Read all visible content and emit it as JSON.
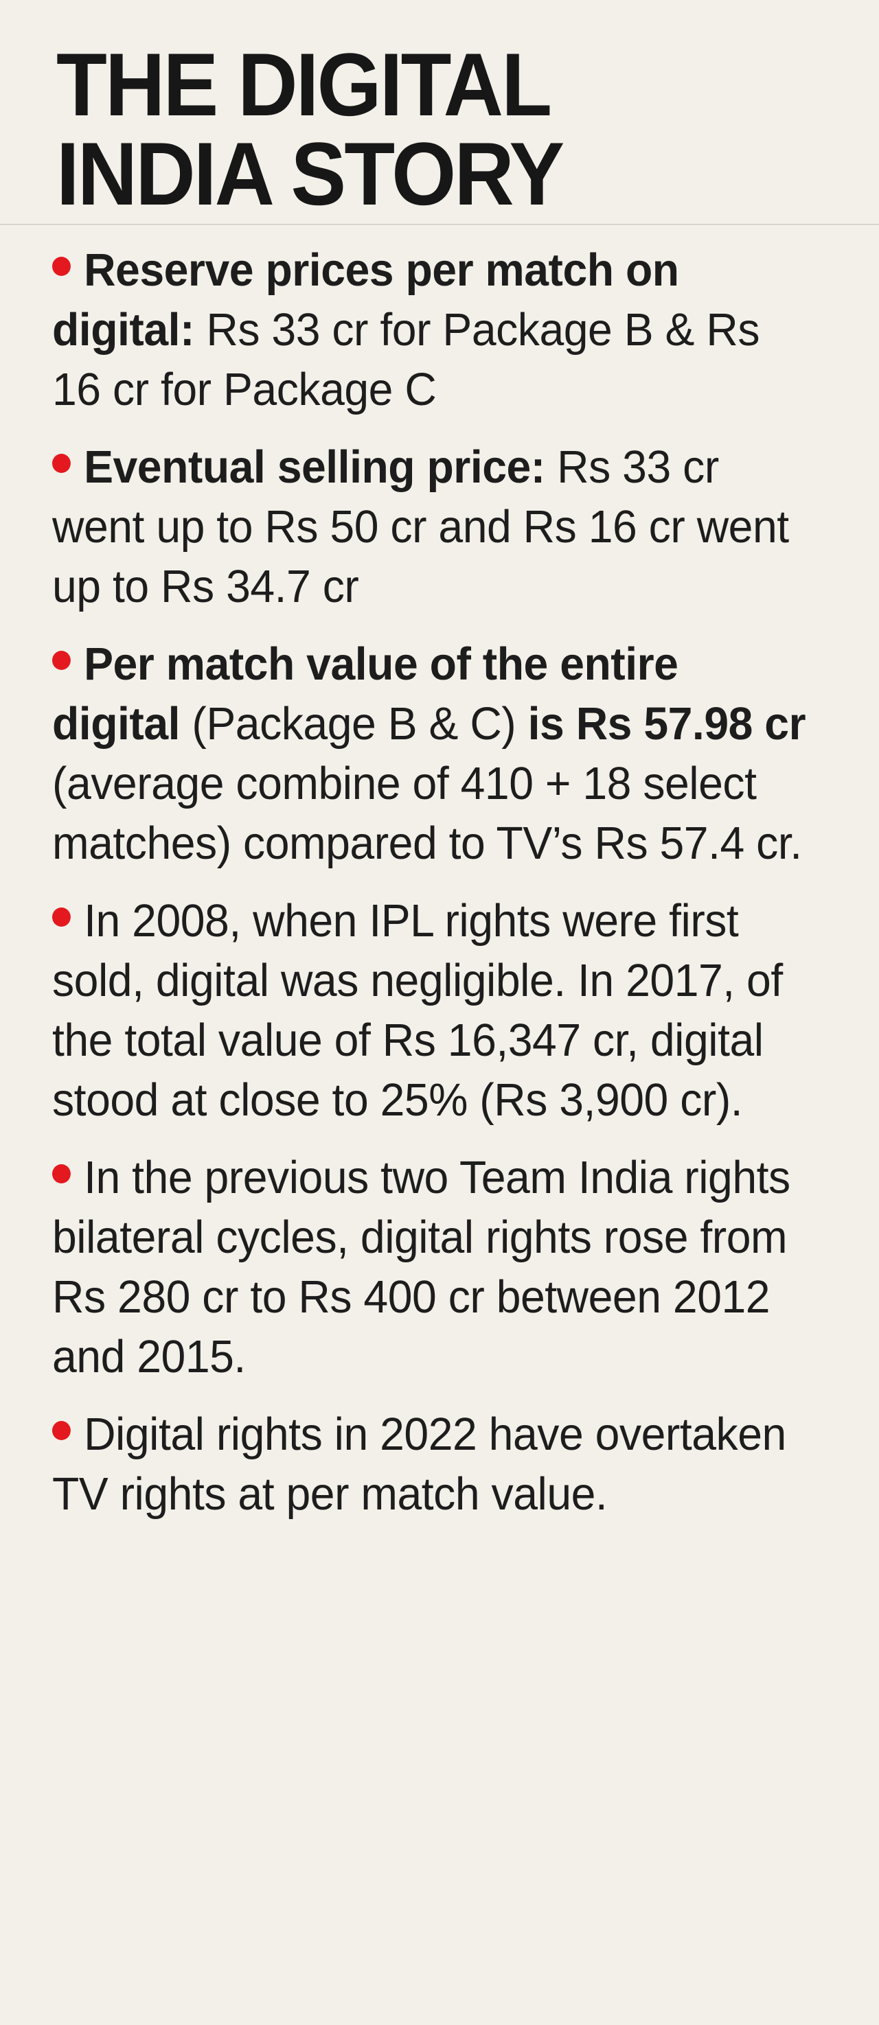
{
  "title": {
    "line1": "THE DIGITAL",
    "line2": "INDIA STORY"
  },
  "accent_color": "#e3191f",
  "items": [
    {
      "bold": "Reserve prices per match on digital:",
      "text": " Rs 33 cr for Package B & Rs 16 cr for Package C"
    },
    {
      "bold": "Eventual selling price:",
      "text": " Rs 33 cr went up to Rs 50 cr and Rs 16 cr went up to Rs 34.7 cr"
    },
    {
      "bold": "Per match value of the entire digital",
      "text": " (Package B & C) ",
      "bold2": "is Rs 57.98 cr",
      "text2": " (average combine of 410 + 18 select matches) compared to TV’s Rs 57.4 cr."
    },
    {
      "text": "In 2008, when IPL rights were first sold, digital was negligible. In 2017, of the total value of Rs 16,347 cr, digital stood at close to 25% (Rs 3,900 cr)."
    },
    {
      "text": "In the previous two Team India rights bilateral cycles, digital rights rose from Rs 280 cr to Rs 400 cr between 2012 and 2015."
    },
    {
      "text": "Digital rights in 2022 have overtaken TV rights at per match value."
    }
  ]
}
